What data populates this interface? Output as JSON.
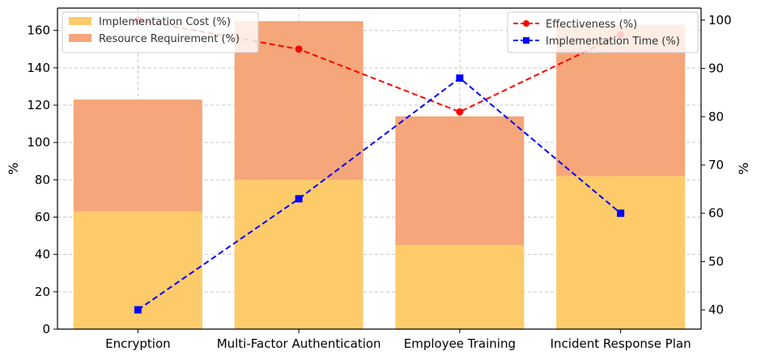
{
  "chart_data": {
    "type": "bar",
    "categories": [
      "Encryption",
      "Multi-Factor Authentication",
      "Employee Training",
      "Incident Response Plan"
    ],
    "stacked_bars": [
      {
        "name": "Implementation Cost (%)",
        "values": [
          63,
          80,
          45,
          82
        ],
        "color": "#FDCB6A"
      },
      {
        "name": "Resource Requirement (%)",
        "values": [
          60,
          85,
          69,
          81
        ],
        "color": "#F5A67A"
      }
    ],
    "lines": [
      {
        "name": "Effectiveness (%)",
        "values": [
          100,
          94,
          81,
          97
        ],
        "color": "#FF0000",
        "marker": "circle",
        "style": "dashed",
        "axis": "right"
      },
      {
        "name": "Implementation Time (%)",
        "values": [
          40,
          63,
          88,
          60
        ],
        "color": "#0000FF",
        "marker": "square",
        "style": "dashed",
        "axis": "right"
      }
    ],
    "ylabel_left": "%",
    "ylabel_right": "%",
    "ylim_left": [
      0,
      172
    ],
    "ylim_right": [
      36,
      102.5
    ],
    "yticks_left": [
      0,
      20,
      40,
      60,
      80,
      100,
      120,
      140,
      160
    ],
    "yticks_right": [
      40,
      50,
      60,
      70,
      80,
      90,
      100
    ],
    "grid": true,
    "legend_bars_position": "top-left",
    "legend_lines_position": "top-right"
  }
}
